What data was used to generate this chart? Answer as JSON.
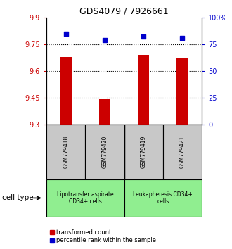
{
  "title": "GDS4079 / 7926661",
  "samples": [
    "GSM779418",
    "GSM779420",
    "GSM779419",
    "GSM779421"
  ],
  "bar_values": [
    9.68,
    9.44,
    9.69,
    9.67
  ],
  "percentile_values": [
    85,
    79,
    82,
    81
  ],
  "ylim_left": [
    9.3,
    9.9
  ],
  "ylim_right": [
    0,
    100
  ],
  "yticks_left": [
    9.3,
    9.45,
    9.6,
    9.75,
    9.9
  ],
  "yticks_right": [
    0,
    25,
    50,
    75,
    100
  ],
  "ytick_labels_left": [
    "9.3",
    "9.45",
    "9.6",
    "9.75",
    "9.9"
  ],
  "ytick_labels_right": [
    "0",
    "25",
    "50",
    "75",
    "100%"
  ],
  "hlines": [
    9.45,
    9.6,
    9.75
  ],
  "bar_color": "#CC0000",
  "dot_color": "#0000CC",
  "bar_bottom": 9.3,
  "sample_box_color": "#C8C8C8",
  "cell_type_group1_label": "Lipotransfer aspirate\nCD34+ cells",
  "cell_type_group2_label": "Leukapheresis CD34+\ncells",
  "cell_type_color": "#90EE90",
  "legend_bar_label": "transformed count",
  "legend_dot_label": "percentile rank within the sample",
  "cell_type_label": "cell type"
}
